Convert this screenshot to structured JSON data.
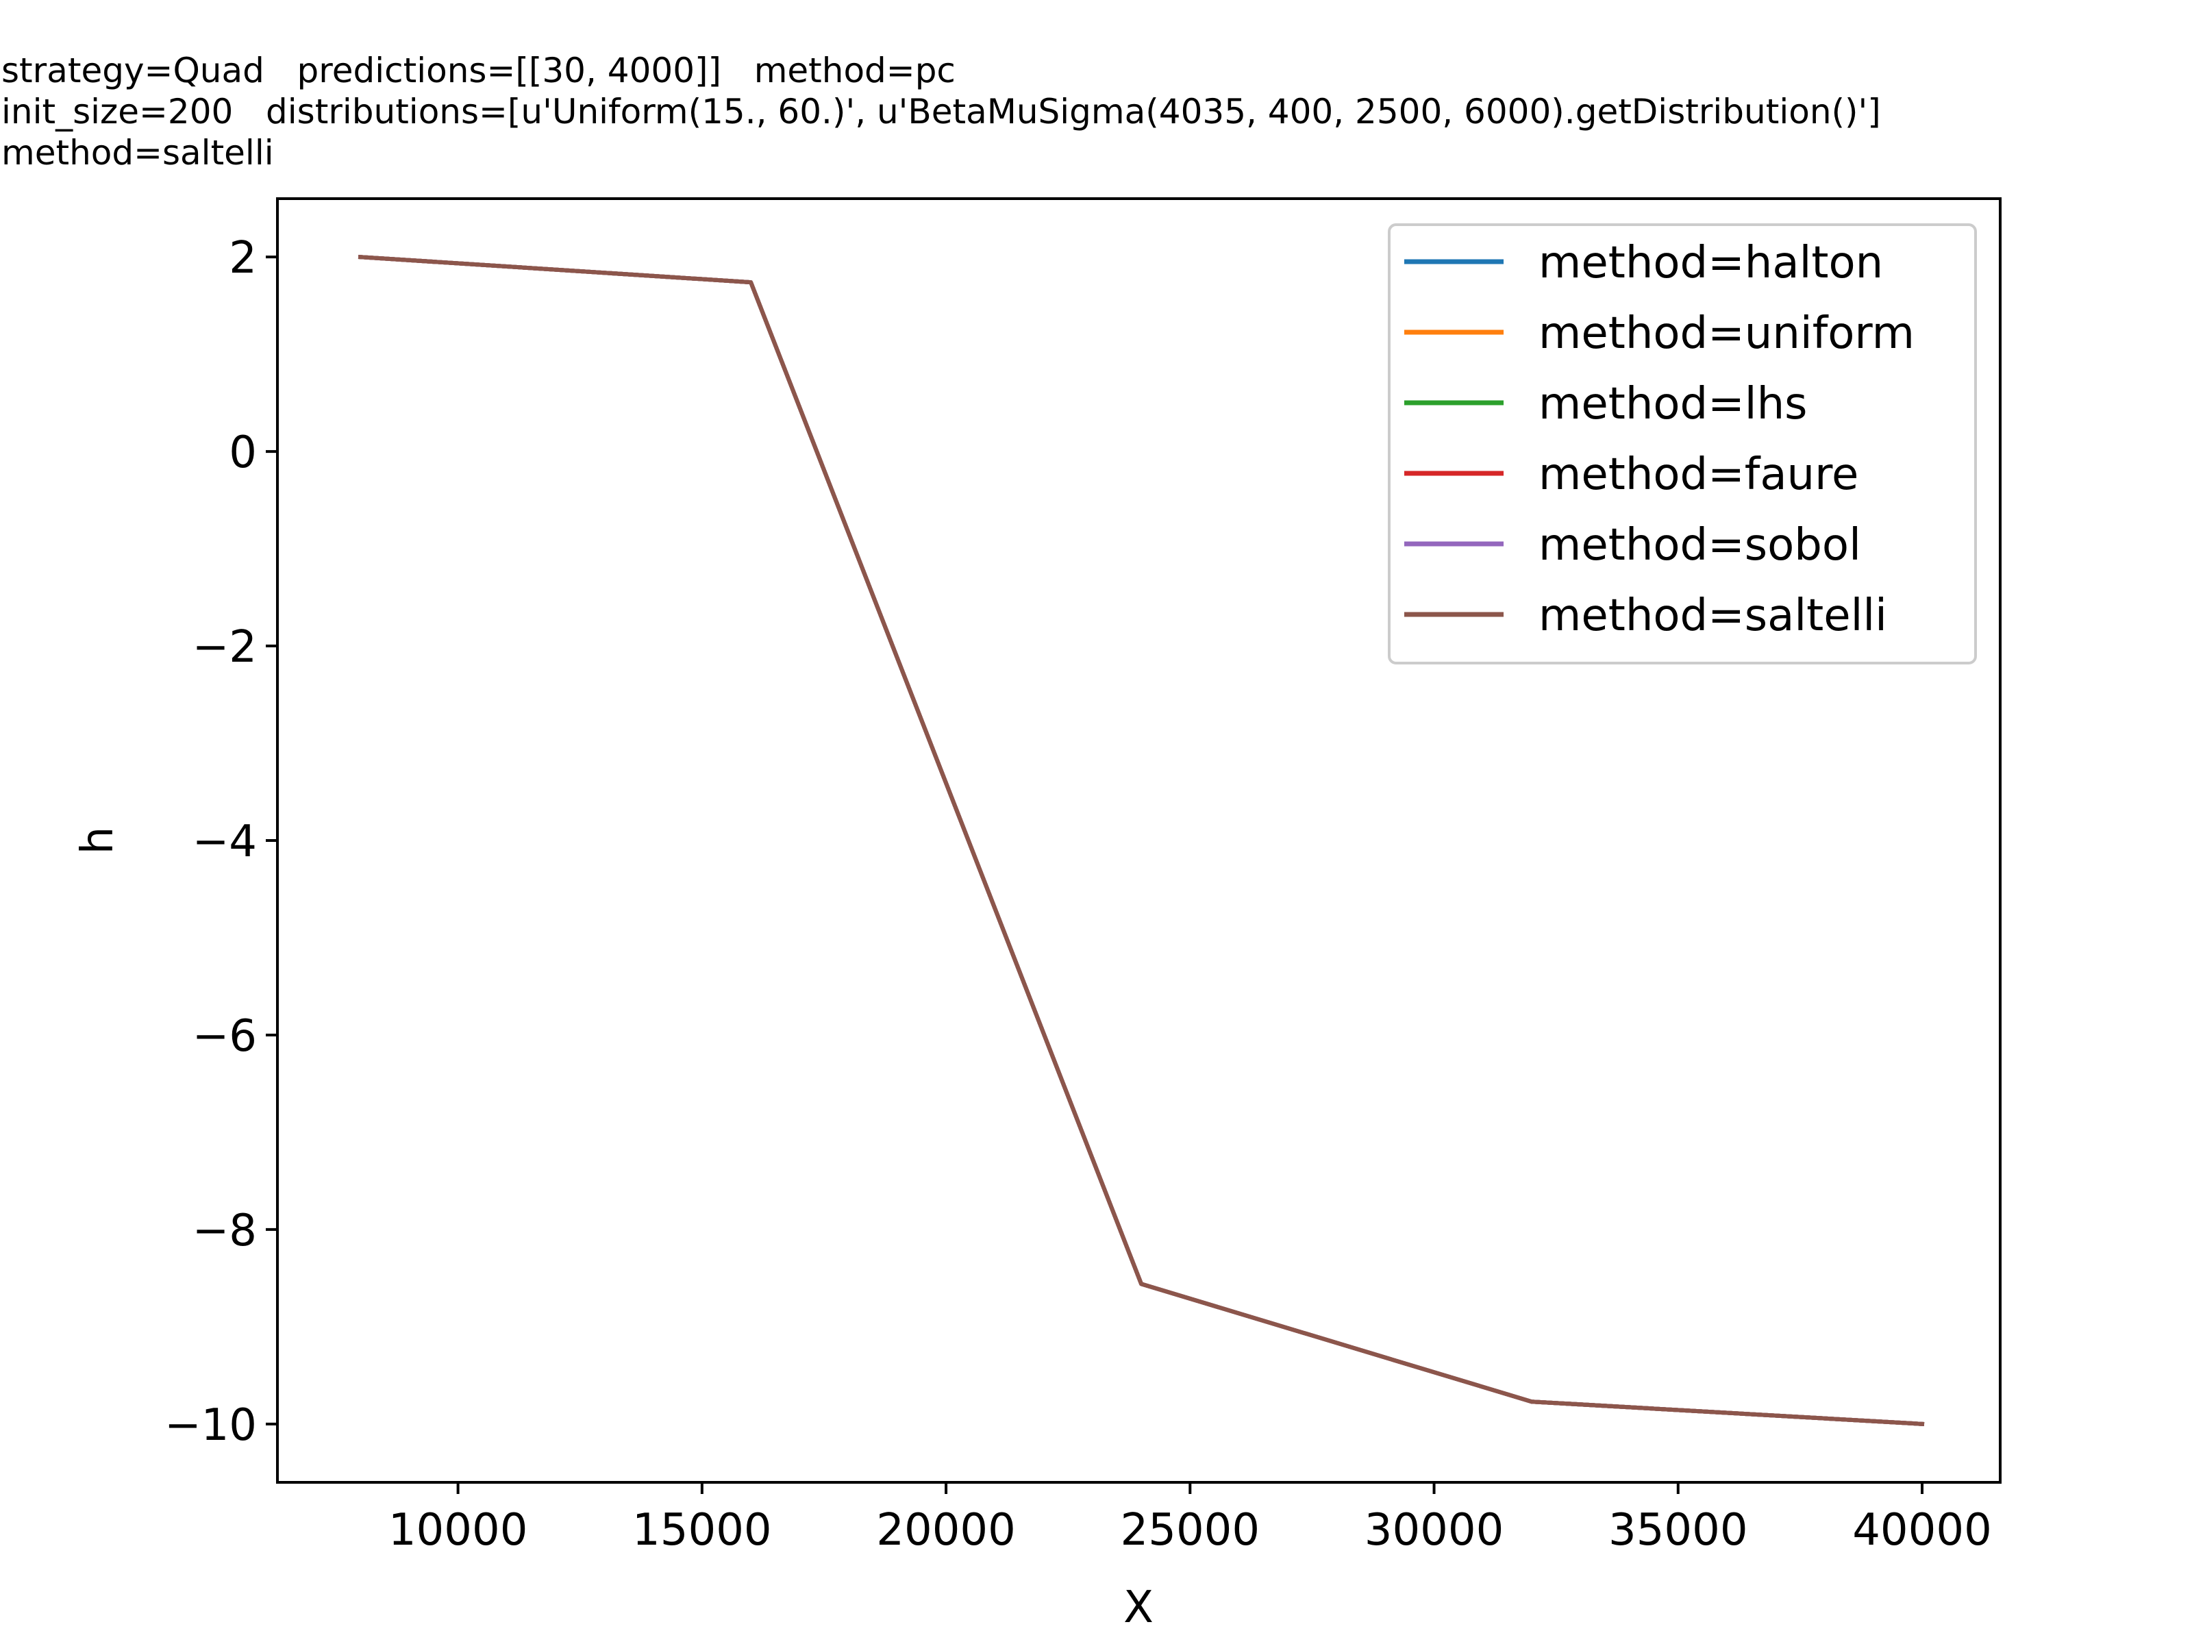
{
  "header": {
    "lines": [
      "strategy=Quad   predictions=[[30, 4000]]   method=pc",
      "init_size=200   distributions=[u'Uniform(15., 60.)', u'BetaMuSigma(4035, 400, 2500, 6000).getDistribution()']",
      "method=saltelli"
    ]
  },
  "chart_data": {
    "type": "line",
    "title": "",
    "xlabel": "X",
    "ylabel": "h",
    "xlim": [
      6300,
      41600
    ],
    "ylim": [
      -10.6,
      2.6
    ],
    "xticks": [
      10000,
      15000,
      20000,
      25000,
      30000,
      35000,
      40000
    ],
    "xtick_labels": [
      "10000",
      "15000",
      "20000",
      "25000",
      "30000",
      "35000",
      "40000"
    ],
    "yticks": [
      2,
      0,
      -2,
      -4,
      -6,
      -8,
      -10
    ],
    "ytick_labels": [
      "2",
      "0",
      "−2",
      "−4",
      "−6",
      "−8",
      "−10"
    ],
    "grid": false,
    "legend_position": "top-right",
    "x": [
      8000,
      16000,
      24000,
      32000,
      40000
    ],
    "series": [
      {
        "name": "method=halton",
        "color": "#1f77b4",
        "values": [
          2.0,
          1.74,
          -8.56,
          -9.77,
          -10.0
        ]
      },
      {
        "name": "method=uniform",
        "color": "#ff7f0e",
        "values": [
          2.0,
          1.74,
          -8.56,
          -9.77,
          -10.0
        ]
      },
      {
        "name": "method=lhs",
        "color": "#2ca02c",
        "values": [
          2.0,
          1.74,
          -8.56,
          -9.77,
          -10.0
        ]
      },
      {
        "name": "method=faure",
        "color": "#d62728",
        "values": [
          2.0,
          1.74,
          -8.56,
          -9.77,
          -10.0
        ]
      },
      {
        "name": "method=sobol",
        "color": "#9467bd",
        "values": [
          2.0,
          1.74,
          -8.56,
          -9.77,
          -10.0
        ]
      },
      {
        "name": "method=saltelli",
        "color": "#8c564b",
        "values": [
          2.0,
          1.74,
          -8.56,
          -9.77,
          -10.0
        ]
      }
    ]
  }
}
